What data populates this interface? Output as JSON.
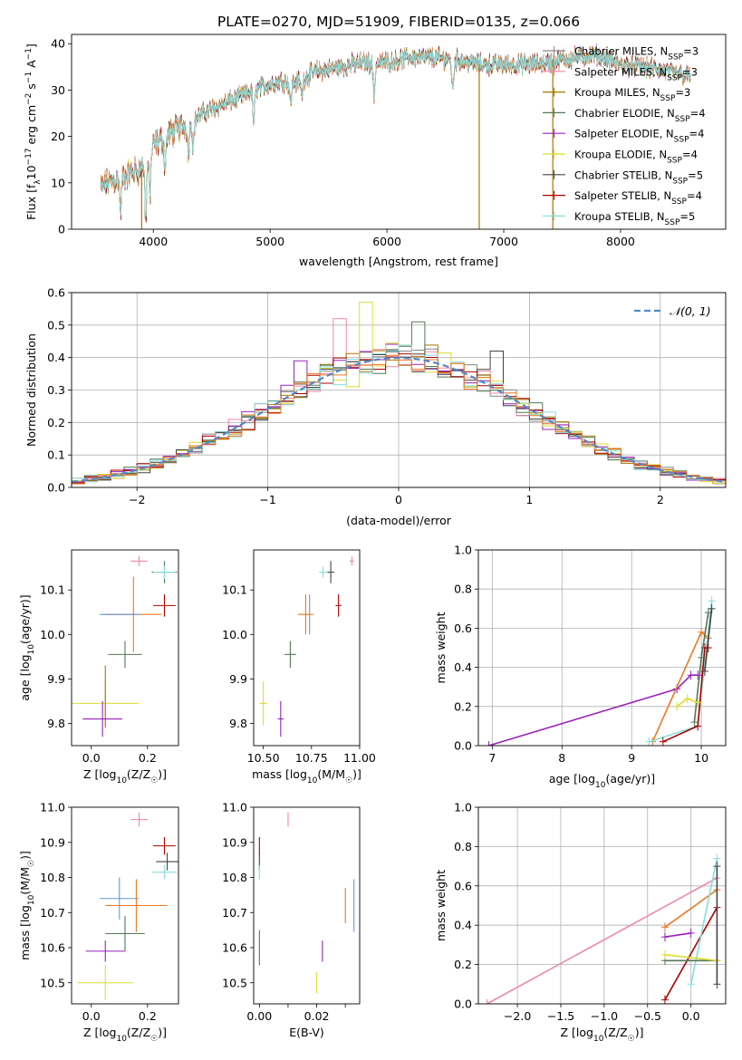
{
  "figure_title": "PLATE=0270, MJD=51909, FIBERID=0135, z=0.066",
  "colors": {
    "Chabrier MILES": "#888888",
    "Salpeter MILES": "#ee88aa",
    "Kroupa MILES": "#aa7700",
    "Chabrier ELODIE": "#557755",
    "Salpeter ELODIE": "#9922bb",
    "Kroupa ELODIE": "#dddd33",
    "Chabrier STELIB": "#444444",
    "Salpeter STELIB": "#aa0000",
    "Kroupa STELIB": "#88dddd",
    "extra_orange": "#ee7722",
    "extra_blue": "#6699dd",
    "normal_curve": "#5588cc",
    "grid": "#b0b0b0"
  },
  "chart_data": [
    {
      "type": "line",
      "id": "spectrum",
      "xlabel": "wavelength [Angstrom, rest frame]",
      "ylabel": "Flux [f",
      "ylabel_rest": "10",
      "ylabel_exp1": "−17",
      "ylabel_mid": " erg cm",
      "ylabel_exp2": "−2",
      "ylabel_mid2": " s",
      "ylabel_exp3": "−1",
      "ylabel_end": " A",
      "ylabel_exp4": "−1",
      "ylabel_close": "]",
      "xlim": [
        3300,
        8900
      ],
      "ylim": [
        0,
        42
      ],
      "xticks": [
        4000,
        5000,
        6000,
        7000,
        8000
      ],
      "yticks": [
        0,
        10,
        20,
        30,
        40
      ],
      "grid": false,
      "legend_position": "upper-right",
      "continuum": {
        "x": [
          3550,
          3700,
          3900,
          4000,
          4100,
          4300,
          4500,
          4700,
          4900,
          5100,
          5200,
          5400,
          5600,
          5800,
          6000,
          6200,
          6400,
          6600,
          6800,
          7000,
          7200,
          7400,
          7600,
          7800,
          8000,
          8200,
          8400,
          8600
        ],
        "y": [
          9,
          11,
          13,
          18,
          20,
          23,
          26,
          28,
          30.5,
          32,
          31.5,
          34,
          35,
          36,
          36,
          37,
          37,
          36.5,
          35.5,
          35.5,
          35.5,
          36,
          37,
          37.5,
          35.5,
          35,
          34,
          33
        ]
      },
      "dips": [
        {
          "x": 3720,
          "y": 4
        },
        {
          "x": 3935,
          "y": 3
        },
        {
          "x": 3970,
          "y": 7
        },
        {
          "x": 4100,
          "y": 13
        },
        {
          "x": 4300,
          "y": 16
        },
        {
          "x": 4340,
          "y": 18
        },
        {
          "x": 4860,
          "y": 23
        },
        {
          "x": 5175,
          "y": 27
        },
        {
          "x": 5270,
          "y": 29
        },
        {
          "x": 5890,
          "y": 29
        },
        {
          "x": 6563,
          "y": 30
        }
      ],
      "spikes": [
        {
          "series": "Kroupa MILES",
          "x": 3900,
          "y": 0
        },
        {
          "series": "Kroupa MILES",
          "x": 6790,
          "y": 0
        },
        {
          "series": "Kroupa MILES",
          "x": 7420,
          "y": 0
        }
      ],
      "series": [
        {
          "name": "Chabrier MILES",
          "nssp": "3"
        },
        {
          "name": "Salpeter MILES",
          "nssp": "3"
        },
        {
          "name": "Kroupa MILES",
          "nssp": "3"
        },
        {
          "name": "Chabrier ELODIE",
          "nssp": "4"
        },
        {
          "name": "Salpeter ELODIE",
          "nssp": "4"
        },
        {
          "name": "Kroupa ELODIE",
          "nssp": "4"
        },
        {
          "name": "Chabrier STELIB",
          "nssp": "5"
        },
        {
          "name": "Salpeter STELIB",
          "nssp": "4"
        },
        {
          "name": "Kroupa STELIB",
          "nssp": "5"
        }
      ],
      "legend_nssp_prefix": "N",
      "legend_nssp_sub": "SSP"
    },
    {
      "type": "bar",
      "id": "residuals",
      "xlabel": "(data-model)/error",
      "ylabel": "Normed distribution",
      "xlim": [
        -2.5,
        2.5
      ],
      "ylim": [
        0,
        0.6
      ],
      "xticks": [
        -2,
        -1,
        0,
        1,
        2
      ],
      "xticklabels": [
        "−2",
        "−1",
        "0",
        "1",
        "2"
      ],
      "yticks": [
        0.0,
        0.1,
        0.2,
        0.3,
        0.4,
        0.5,
        0.6
      ],
      "yticklabels": [
        "0.0",
        "0.1",
        "0.2",
        "0.3",
        "0.4",
        "0.5",
        "0.6"
      ],
      "grid": true,
      "bin_width": 0.1,
      "legend_position": "upper-right",
      "legend_label": "𝒩(0, 1)",
      "histogram_series": [
        "Chabrier MILES",
        "Salpeter MILES",
        "Kroupa MILES",
        "Chabrier ELODIE",
        "Salpeter ELODIE",
        "Kroupa ELODIE",
        "Chabrier STELIB",
        "Salpeter STELIB",
        "Kroupa STELIB",
        "extra_orange"
      ],
      "featured_bins": [
        {
          "x": -0.45,
          "series": "Salpeter MILES",
          "y": 0.52
        },
        {
          "x": -0.25,
          "series": "Kroupa ELODIE",
          "y": 0.57
        },
        {
          "x": -0.35,
          "series": "Kroupa ELODIE",
          "y": 0.31
        },
        {
          "x": 0.15,
          "series": "Chabrier ELODIE",
          "y": 0.51
        },
        {
          "x": 0.75,
          "series": "Chabrier STELIB",
          "y": 0.42
        },
        {
          "x": -0.75,
          "series": "Salpeter ELODIE",
          "y": 0.39
        },
        {
          "x": 0.55,
          "series": "Kroupa ELODIE",
          "y": 0.31
        }
      ]
    },
    {
      "type": "scatter",
      "id": "age-vs-Z",
      "xlabel": "Z [log",
      "xlabel_sub": "10",
      "xlabel_end": "(Z/Z",
      "xlabel_sun": "☉",
      "xlabel_close": ")]",
      "ylabel": "age  [log",
      "ylabel_sub": "10",
      "ylabel_end": "(age/yr)]",
      "xlim": [
        -0.07,
        0.31
      ],
      "ylim": [
        9.75,
        10.19
      ],
      "xticks": [
        0.0,
        0.2
      ],
      "xticklabels": [
        "0.0",
        "0.2"
      ],
      "yticks": [
        9.8,
        9.9,
        10.0,
        10.1
      ],
      "yticklabels": [
        "9.8",
        "9.9",
        "10.0",
        "10.1"
      ],
      "points": [
        {
          "series": "Salpeter MILES",
          "x": 0.17,
          "y": 10.165,
          "xerr": 0.03,
          "yerr": 0.012
        },
        {
          "series": "Chabrier ELODIE",
          "x": 0.26,
          "y": 10.14,
          "xerr": 0.045,
          "yerr": 0.025
        },
        {
          "series": "Kroupa STELIB",
          "x": 0.26,
          "y": 10.14,
          "xerr": 0.04,
          "yerr": 0.015
        },
        {
          "series": "Salpeter STELIB",
          "x": 0.26,
          "y": 10.065,
          "xerr": 0.04,
          "yerr": 0.025
        },
        {
          "series": "extra_orange",
          "x": 0.15,
          "y": 10.045,
          "xerr": 0.1,
          "yerr": 0.085
        },
        {
          "series": "extra_blue",
          "x": 0.1,
          "y": 10.045,
          "xerr": 0.07,
          "yerr": 0.0
        },
        {
          "series": "Chabrier ELODIE",
          "x": 0.12,
          "y": 9.955,
          "xerr": 0.06,
          "yerr": 0.03
        },
        {
          "series": "Kroupa ELODIE",
          "x": 0.05,
          "y": 9.845,
          "xerr": 0.12,
          "yerr": 0.05
        },
        {
          "series": "Kroupa MILES",
          "x": 0.05,
          "y": 9.86,
          "xerr": 0.0,
          "yerr": 0.07
        },
        {
          "series": "Salpeter ELODIE",
          "x": 0.04,
          "y": 9.81,
          "xerr": 0.07,
          "yerr": 0.04
        }
      ]
    },
    {
      "type": "scatter",
      "id": "age-vs-mass",
      "xlabel": "mass [log",
      "xlabel_sub": "10",
      "xlabel_end": "(M/M",
      "xlabel_sun": "☉",
      "xlabel_close": ")]",
      "xlim": [
        10.45,
        11.0
      ],
      "ylim": [
        9.75,
        10.19
      ],
      "xticks": [
        10.5,
        10.75,
        11.0
      ],
      "xticklabels": [
        "10.50",
        "10.75",
        "11.00"
      ],
      "yticks": [
        9.8,
        9.9,
        10.0,
        10.1
      ],
      "yticklabels": [
        "9.8",
        "9.9",
        "10.0",
        "10.1"
      ],
      "points": [
        {
          "series": "Salpeter MILES",
          "x": 10.96,
          "y": 10.165,
          "xerr": 0.012,
          "yerr": 0.01
        },
        {
          "series": "Chabrier STELIB",
          "x": 10.85,
          "y": 10.14,
          "xerr": 0.018,
          "yerr": 0.025
        },
        {
          "series": "Kroupa STELIB",
          "x": 10.81,
          "y": 10.14,
          "xerr": 0.02,
          "yerr": 0.012
        },
        {
          "series": "Salpeter STELIB",
          "x": 10.89,
          "y": 10.065,
          "xerr": 0.015,
          "yerr": 0.025
        },
        {
          "series": "extra_orange",
          "x": 10.72,
          "y": 10.045,
          "xerr": 0.04,
          "yerr": 0.045
        },
        {
          "series": "extra_blue",
          "x": 10.74,
          "y": 10.045,
          "xerr": 0.0,
          "yerr": 0.045
        },
        {
          "series": "Chabrier ELODIE",
          "x": 10.64,
          "y": 9.955,
          "xerr": 0.03,
          "yerr": 0.03
        },
        {
          "series": "Kroupa ELODIE",
          "x": 10.5,
          "y": 9.845,
          "xerr": 0.02,
          "yerr": 0.05
        },
        {
          "series": "Salpeter ELODIE",
          "x": 10.59,
          "y": 9.81,
          "xerr": 0.015,
          "yerr": 0.04
        }
      ]
    },
    {
      "type": "line",
      "id": "massweight-vs-age",
      "xlabel": "age  [log",
      "xlabel_sub": "10",
      "xlabel_end": "(age/yr)]",
      "ylabel": "mass weight",
      "xlim": [
        6.8,
        10.35
      ],
      "ylim": [
        0,
        1.0
      ],
      "xticks": [
        7,
        8,
        9,
        10
      ],
      "xticklabels": [
        "7",
        "8",
        "9",
        "10"
      ],
      "yticks": [
        0.0,
        0.2,
        0.4,
        0.6,
        0.8,
        1.0
      ],
      "yticklabels": [
        "0.0",
        "0.2",
        "0.4",
        "0.6",
        "0.8",
        "1.0"
      ],
      "grid": true,
      "series": [
        {
          "series": "Salpeter ELODIE",
          "x": [
            6.95,
            9.65,
            9.85,
            9.95
          ],
          "y": [
            0.0,
            0.29,
            0.36,
            0.36
          ]
        },
        {
          "series": "extra_orange",
          "x": [
            9.3,
            10.0,
            10.1
          ],
          "y": [
            0.02,
            0.58,
            0.55
          ]
        },
        {
          "series": "Kroupa STELIB",
          "x": [
            9.25,
            9.95,
            10.15
          ],
          "y": [
            0.02,
            0.1,
            0.74
          ]
        },
        {
          "series": "Salpeter STELIB",
          "x": [
            9.45,
            9.95,
            10.05,
            10.1
          ],
          "y": [
            0.02,
            0.1,
            0.5,
            0.5
          ]
        },
        {
          "series": "Chabrier ELODIE",
          "x": [
            9.9,
            10.0,
            10.1
          ],
          "y": [
            0.12,
            0.45,
            0.68
          ]
        },
        {
          "series": "Kroupa ELODIE",
          "x": [
            9.65,
            9.8,
            9.95
          ],
          "y": [
            0.2,
            0.24,
            0.22
          ]
        },
        {
          "series": "Chabrier STELIB",
          "x": [
            10.05,
            10.15
          ],
          "y": [
            0.38,
            0.7
          ]
        }
      ]
    },
    {
      "type": "scatter",
      "id": "mass-vs-Z",
      "xlabel": "Z [log",
      "xlabel_sub": "10",
      "xlabel_end": "(Z/Z",
      "xlabel_sun": "☉",
      "xlabel_close": ")]",
      "ylabel": "mass [log",
      "ylabel_sub": "10",
      "ylabel_end": "(M/M",
      "ylabel_sun": "☉",
      "ylabel_close": ")]",
      "xlim": [
        -0.07,
        0.31
      ],
      "ylim": [
        10.44,
        11.0
      ],
      "xticks": [
        0.0,
        0.2
      ],
      "xticklabels": [
        "0.0",
        "0.2"
      ],
      "yticks": [
        10.5,
        10.6,
        10.7,
        10.8,
        10.9,
        11.0
      ],
      "yticklabels": [
        "10.5",
        "10.6",
        "10.7",
        "10.8",
        "10.9",
        "11.0"
      ],
      "points": [
        {
          "series": "Salpeter MILES",
          "x": 0.17,
          "y": 10.965,
          "xerr": 0.03,
          "yerr": 0.02
        },
        {
          "series": "Salpeter STELIB",
          "x": 0.26,
          "y": 10.89,
          "xerr": 0.04,
          "yerr": 0.025
        },
        {
          "series": "Chabrier STELIB",
          "x": 0.27,
          "y": 10.845,
          "xerr": 0.04,
          "yerr": 0.025
        },
        {
          "series": "Kroupa STELIB",
          "x": 0.26,
          "y": 10.815,
          "xerr": 0.045,
          "yerr": 0.02
        },
        {
          "series": "extra_blue",
          "x": 0.1,
          "y": 10.74,
          "xerr": 0.07,
          "yerr": 0.06
        },
        {
          "series": "extra_orange",
          "x": 0.16,
          "y": 10.72,
          "xerr": 0.11,
          "yerr": 0.075
        },
        {
          "series": "Chabrier ELODIE",
          "x": 0.12,
          "y": 10.64,
          "xerr": 0.07,
          "yerr": 0.05
        },
        {
          "series": "Salpeter ELODIE",
          "x": 0.05,
          "y": 10.59,
          "xerr": 0.07,
          "yerr": 0.03
        },
        {
          "series": "Kroupa ELODIE",
          "x": 0.05,
          "y": 10.5,
          "xerr": 0.1,
          "yerr": 0.05
        }
      ]
    },
    {
      "type": "scatter",
      "id": "mass-vs-EBV",
      "xlabel": "E(B-V)",
      "xlim": [
        -0.002,
        0.035
      ],
      "ylim": [
        10.44,
        11.0
      ],
      "xticks": [
        0.0,
        0.01,
        0.02,
        0.03
      ],
      "xticklabels": [
        "0.00",
        "",
        "0.02",
        ""
      ],
      "yticks": [
        10.5,
        10.6,
        10.7,
        10.8,
        10.9,
        11.0
      ],
      "yticklabels": [
        "10.5",
        "10.6",
        "10.7",
        "10.8",
        "10.9",
        "11.0"
      ],
      "points": [
        {
          "series": "Salpeter MILES",
          "x": 0.01,
          "y": 10.965,
          "xerr": 0.0,
          "yerr": 0.02
        },
        {
          "series": "Salpeter STELIB",
          "x": 0.0,
          "y": 10.89,
          "xerr": 0.0,
          "yerr": 0.025
        },
        {
          "series": "Chabrier STELIB",
          "x": 0.0,
          "y": 10.845,
          "xerr": 0.0,
          "yerr": 0.025
        },
        {
          "series": "Kroupa STELIB",
          "x": 0.0,
          "y": 10.815,
          "xerr": 0.0,
          "yerr": 0.02
        },
        {
          "series": "extra_blue",
          "x": 0.033,
          "y": 10.72,
          "xerr": 0.0,
          "yerr": 0.075
        },
        {
          "series": "extra_orange",
          "x": 0.03,
          "y": 10.72,
          "xerr": 0.0,
          "yerr": 0.05
        },
        {
          "series": "Chabrier ELODIE",
          "x": 0.0,
          "y": 10.6,
          "xerr": 0.0,
          "yerr": 0.05
        },
        {
          "series": "Salpeter ELODIE",
          "x": 0.022,
          "y": 10.59,
          "xerr": 0.0,
          "yerr": 0.03
        },
        {
          "series": "Kroupa ELODIE",
          "x": 0.02,
          "y": 10.5,
          "xerr": 0.0,
          "yerr": 0.03
        }
      ]
    },
    {
      "type": "line",
      "id": "massweight-vs-Z",
      "xlabel": "Z [log",
      "xlabel_sub": "10",
      "xlabel_end": "(Z/Z",
      "xlabel_sun": "☉",
      "xlabel_close": ")]",
      "ylabel": "mass weight",
      "xlim": [
        -2.45,
        0.4
      ],
      "ylim": [
        0,
        1.0
      ],
      "xticks": [
        -2.0,
        -1.5,
        -1.0,
        -0.5,
        0.0
      ],
      "xticklabels": [
        "−2.0",
        "−1.5",
        "−1.0",
        "−0.5",
        "0.0"
      ],
      "yticks": [
        0.0,
        0.2,
        0.4,
        0.6,
        0.8,
        1.0
      ],
      "yticklabels": [
        "0.0",
        "0.2",
        "0.4",
        "0.6",
        "0.8",
        "1.0"
      ],
      "grid": true,
      "series": [
        {
          "series": "Salpeter MILES",
          "x": [
            -2.35,
            0.3
          ],
          "y": [
            0.0,
            0.64
          ]
        },
        {
          "series": "extra_orange",
          "x": [
            -0.3,
            0.3
          ],
          "y": [
            0.39,
            0.58
          ]
        },
        {
          "series": "Salpeter ELODIE",
          "x": [
            -0.3,
            0.0
          ],
          "y": [
            0.34,
            0.36
          ]
        },
        {
          "series": "Salpeter STELIB",
          "x": [
            -0.3,
            0.3
          ],
          "y": [
            0.02,
            0.49
          ]
        },
        {
          "series": "Kroupa STELIB",
          "x": [
            0.0,
            0.3
          ],
          "y": [
            0.1,
            0.74
          ]
        },
        {
          "series": "Chabrier ELODIE",
          "x": [
            -0.3,
            0.3
          ],
          "y": [
            0.22,
            0.22
          ]
        },
        {
          "series": "Kroupa ELODIE",
          "x": [
            -0.3,
            0.3
          ],
          "y": [
            0.25,
            0.22
          ]
        },
        {
          "series": "Chabrier STELIB",
          "x": [
            0.3,
            0.3
          ],
          "y": [
            0.1,
            0.7
          ]
        }
      ]
    }
  ]
}
